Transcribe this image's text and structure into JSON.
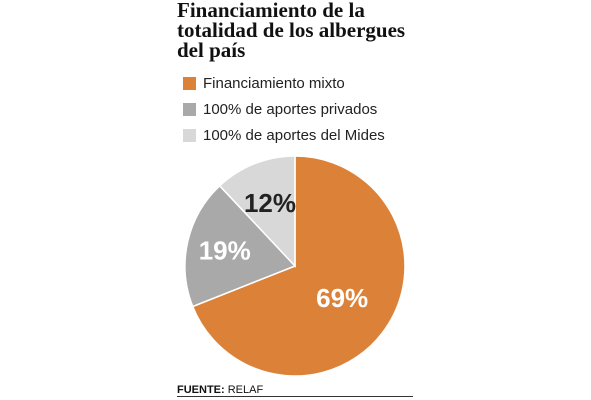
{
  "title": "Financiamiento de la totalidad de los albergues del país",
  "chart_data": {
    "type": "pie",
    "categories": [
      "Financiamiento mixto",
      "100% de aportes privados",
      "100% de aportes del Mides"
    ],
    "values": [
      69,
      19,
      12
    ],
    "labels": [
      "69%",
      "19%",
      "12%"
    ],
    "colors": [
      "#db8238",
      "#a9a9a9",
      "#d8d8d8"
    ],
    "label_colors": [
      "#ffffff",
      "#ffffff",
      "#222222"
    ],
    "legend_position": "top"
  },
  "legend": [
    {
      "label": "Financiamiento mixto",
      "color": "#db8238"
    },
    {
      "label": "100% de aportes privados",
      "color": "#a9a9a9"
    },
    {
      "label": "100% de aportes del Mides",
      "color": "#d8d8d8"
    }
  ],
  "footer": {
    "label": "FUENTE:",
    "source": "RELAF"
  }
}
